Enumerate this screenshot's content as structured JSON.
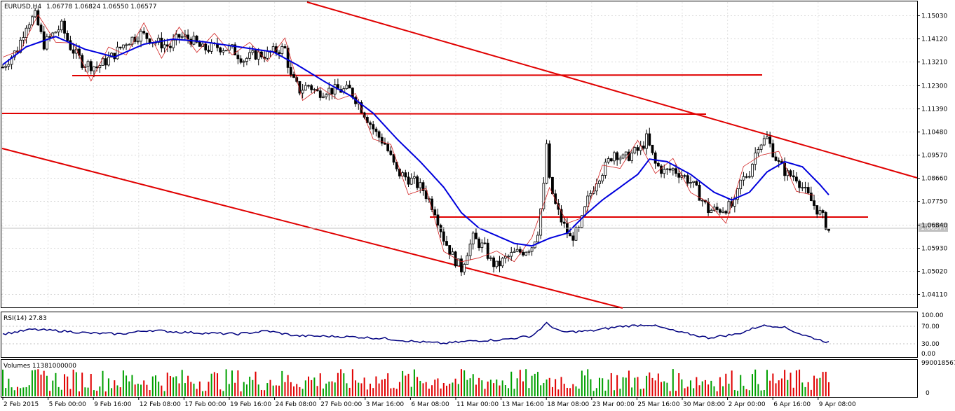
{
  "chart_data": {
    "type": "candlestick",
    "symbol_header": "EURUSD,H4",
    "ohlc_header": "1.06778 1.06824 1.06550 1.06577",
    "current_price_label": "1.06577",
    "price_axis": {
      "range": [
        1.0362,
        1.1555
      ],
      "ticks": [
        "1.15030",
        "1.14120",
        "1.13210",
        "1.12300",
        "1.11390",
        "1.10480",
        "1.09570",
        "1.08660",
        "1.07750",
        "1.06840",
        "1.05930",
        "1.05020",
        "1.04110"
      ]
    },
    "x_tick_labels": [
      "2 Feb 2015",
      "5 Feb 00:00",
      "9 Feb 16:00",
      "12 Feb 08:00",
      "17 Feb 00:00",
      "19 Feb 16:00",
      "24 Feb 08:00",
      "27 Feb 00:00",
      "3 Mar 16:00",
      "6 Mar 08:00",
      "11 Mar 00:00",
      "13 Mar 16:00",
      "18 Mar 08:00",
      "23 Mar 00:00",
      "25 Mar 16:00",
      "30 Mar 08:00",
      "2 Apr 00:00",
      "6 Apr 16:00",
      "9 Apr 08:00"
    ],
    "price_anchors": [
      [
        0,
        1.13
      ],
      [
        2,
        1.133
      ],
      [
        5,
        1.137
      ],
      [
        8,
        1.147
      ],
      [
        11,
        1.15
      ],
      [
        14,
        1.139
      ],
      [
        18,
        1.144
      ],
      [
        20,
        1.146
      ],
      [
        23,
        1.138
      ],
      [
        27,
        1.132
      ],
      [
        32,
        1.13
      ],
      [
        37,
        1.134
      ],
      [
        42,
        1.14
      ],
      [
        47,
        1.143
      ],
      [
        52,
        1.14
      ],
      [
        57,
        1.138
      ],
      [
        60,
        1.142
      ],
      [
        64,
        1.141
      ],
      [
        68,
        1.137
      ],
      [
        73,
        1.138
      ],
      [
        78,
        1.137
      ],
      [
        82,
        1.133
      ],
      [
        86,
        1.135
      ],
      [
        90,
        1.135
      ],
      [
        94,
        1.137
      ],
      [
        96,
        1.137
      ],
      [
        98,
        1.126
      ],
      [
        101,
        1.121
      ],
      [
        104,
        1.123
      ],
      [
        107,
        1.12
      ],
      [
        110,
        1.121
      ],
      [
        114,
        1.121
      ],
      [
        118,
        1.121
      ],
      [
        121,
        1.116
      ],
      [
        124,
        1.11
      ],
      [
        127,
        1.104
      ],
      [
        130,
        1.1
      ],
      [
        134,
        1.089
      ],
      [
        137,
        1.087
      ],
      [
        140,
        1.085
      ],
      [
        143,
        1.082
      ],
      [
        147,
        1.074
      ],
      [
        150,
        1.063
      ],
      [
        153,
        1.056
      ],
      [
        156,
        1.051
      ],
      [
        158,
        1.058
      ],
      [
        160,
        1.063
      ],
      [
        162,
        1.061
      ],
      [
        164,
        1.059
      ],
      [
        166,
        1.054
      ],
      [
        168,
        1.052
      ],
      [
        171,
        1.055
      ],
      [
        174,
        1.057
      ],
      [
        177,
        1.058
      ],
      [
        180,
        1.06
      ],
      [
        182,
        1.066
      ],
      [
        184,
        1.083
      ],
      [
        185,
        1.1
      ],
      [
        186,
        1.085
      ],
      [
        188,
        1.076
      ],
      [
        190,
        1.07
      ],
      [
        193,
        1.063
      ],
      [
        196,
        1.066
      ],
      [
        199,
        1.078
      ],
      [
        202,
        1.086
      ],
      [
        205,
        1.091
      ],
      [
        208,
        1.097
      ],
      [
        211,
        1.094
      ],
      [
        214,
        1.096
      ],
      [
        217,
        1.098
      ],
      [
        219,
        1.102
      ],
      [
        222,
        1.092
      ],
      [
        225,
        1.089
      ],
      [
        228,
        1.09
      ],
      [
        231,
        1.088
      ],
      [
        234,
        1.085
      ],
      [
        237,
        1.08
      ],
      [
        240,
        1.074
      ],
      [
        243,
        1.074
      ],
      [
        246,
        1.075
      ],
      [
        249,
        1.076
      ],
      [
        251,
        1.085
      ],
      [
        254,
        1.089
      ],
      [
        257,
        1.1
      ],
      [
        260,
        1.102
      ],
      [
        262,
        1.097
      ],
      [
        264,
        1.092
      ],
      [
        267,
        1.088
      ],
      [
        270,
        1.087
      ],
      [
        273,
        1.081
      ],
      [
        276,
        1.076
      ],
      [
        279,
        1.071
      ],
      [
        281,
        1.066
      ]
    ],
    "ma_anchors": [
      [
        0,
        1.131
      ],
      [
        8,
        1.138
      ],
      [
        18,
        1.142
      ],
      [
        28,
        1.137
      ],
      [
        38,
        1.134
      ],
      [
        48,
        1.139
      ],
      [
        58,
        1.141
      ],
      [
        68,
        1.14
      ],
      [
        80,
        1.138
      ],
      [
        92,
        1.136
      ],
      [
        100,
        1.131
      ],
      [
        110,
        1.124
      ],
      [
        118,
        1.119
      ],
      [
        126,
        1.112
      ],
      [
        134,
        1.102
      ],
      [
        142,
        1.093
      ],
      [
        150,
        1.083
      ],
      [
        156,
        1.073
      ],
      [
        162,
        1.067
      ],
      [
        168,
        1.064
      ],
      [
        174,
        1.061
      ],
      [
        180,
        1.06
      ],
      [
        186,
        1.063
      ],
      [
        192,
        1.065
      ],
      [
        198,
        1.072
      ],
      [
        204,
        1.078
      ],
      [
        210,
        1.083
      ],
      [
        216,
        1.088
      ],
      [
        220,
        1.094
      ],
      [
        226,
        1.093
      ],
      [
        234,
        1.088
      ],
      [
        242,
        1.081
      ],
      [
        248,
        1.078
      ],
      [
        254,
        1.081
      ],
      [
        260,
        1.089
      ],
      [
        266,
        1.093
      ],
      [
        272,
        1.091
      ],
      [
        278,
        1.084
      ],
      [
        281,
        1.08
      ]
    ],
    "rsi": {
      "label": "RSI(14) 27.83",
      "ticks": [
        "100.00",
        "70.00",
        "30.00",
        "0.00"
      ],
      "anchors": [
        [
          0,
          50
        ],
        [
          10,
          62
        ],
        [
          20,
          58
        ],
        [
          30,
          52
        ],
        [
          40,
          50
        ],
        [
          50,
          60
        ],
        [
          60,
          55
        ],
        [
          70,
          52
        ],
        [
          80,
          50
        ],
        [
          90,
          58
        ],
        [
          100,
          45
        ],
        [
          110,
          44
        ],
        [
          120,
          42
        ],
        [
          130,
          38
        ],
        [
          140,
          30
        ],
        [
          150,
          25
        ],
        [
          160,
          32
        ],
        [
          170,
          35
        ],
        [
          180,
          45
        ],
        [
          185,
          78
        ],
        [
          190,
          55
        ],
        [
          200,
          58
        ],
        [
          210,
          70
        ],
        [
          220,
          75
        ],
        [
          230,
          55
        ],
        [
          240,
          40
        ],
        [
          250,
          50
        ],
        [
          258,
          72
        ],
        [
          265,
          70
        ],
        [
          272,
          48
        ],
        [
          280,
          30
        ],
        [
          281,
          28
        ]
      ]
    },
    "volumes": {
      "label": "Volumes 11381000000",
      "ticks": [
        "9900185671",
        "0"
      ]
    }
  }
}
